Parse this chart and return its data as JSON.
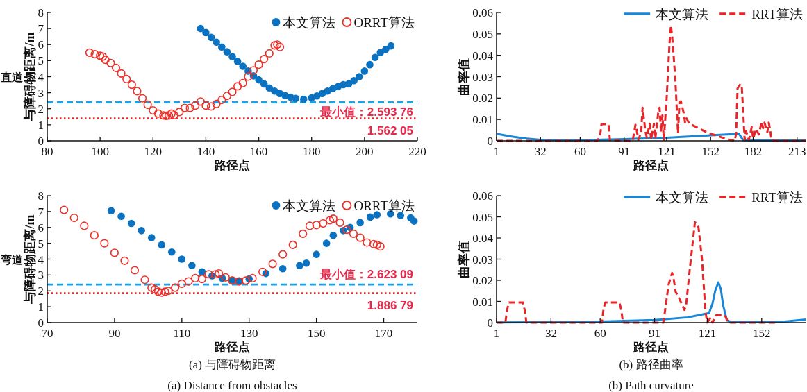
{
  "chart_data": [
    {
      "type": "scatter",
      "xlabel": "路径点",
      "ylabel": "与障碍物距离/m",
      "xlim": [
        80,
        220
      ],
      "ylim": [
        0,
        8
      ],
      "xticks": [
        80,
        100,
        120,
        140,
        160,
        180,
        200,
        220
      ],
      "yticks": [
        0,
        1,
        2,
        3,
        4,
        5,
        6,
        7,
        8
      ],
      "legend": "top right",
      "marker": "circle",
      "annotations": [
        "直道",
        "最小值：2.593 76",
        "1.562 05"
      ],
      "ref_lines": [
        {
          "axis": "y",
          "value": 2.4,
          "color": "#1ea0e6",
          "line_style": "dashed"
        },
        {
          "axis": "y",
          "value": 1.4,
          "color": "#e8262a",
          "line_style": "dotted"
        }
      ],
      "series": [
        {
          "name": "本文算法",
          "color": "#0a72c0",
          "x": [
            138,
            140,
            142,
            144,
            146,
            148,
            150,
            152,
            154,
            156,
            158,
            160,
            162,
            164,
            166,
            168,
            170,
            172,
            174,
            177,
            180,
            182,
            184,
            186,
            188,
            190,
            192,
            194,
            196,
            198,
            200,
            202,
            204,
            206,
            208,
            210
          ],
          "values": [
            7.0,
            6.75,
            6.45,
            6.15,
            5.85,
            5.55,
            5.25,
            4.95,
            4.65,
            4.35,
            4.05,
            3.8,
            3.55,
            3.3,
            3.1,
            2.95,
            2.82,
            2.72,
            2.65,
            2.59,
            2.68,
            2.8,
            2.95,
            3.1,
            3.25,
            3.38,
            3.5,
            3.55,
            3.75,
            4.0,
            4.35,
            4.75,
            5.2,
            5.5,
            5.7,
            5.92
          ]
        },
        {
          "name": "ORRT算法",
          "color": "#e8322a",
          "x": [
            96,
            98,
            100,
            101,
            102,
            104,
            106,
            108,
            110,
            112,
            114,
            116,
            118,
            120,
            122,
            124,
            125,
            126,
            127,
            128,
            130,
            132,
            134,
            136,
            138,
            140,
            142,
            144,
            146,
            148,
            150,
            152,
            154,
            156,
            158,
            160,
            162,
            164,
            166,
            167,
            168
          ],
          "values": [
            5.5,
            5.4,
            5.3,
            5.25,
            5.05,
            4.85,
            4.55,
            4.2,
            3.85,
            3.5,
            3.1,
            2.65,
            2.25,
            1.9,
            1.7,
            1.58,
            1.56,
            1.58,
            1.7,
            1.6,
            1.8,
            2.05,
            2.05,
            2.2,
            2.45,
            2.2,
            2.15,
            2.3,
            2.55,
            2.8,
            3.05,
            3.4,
            3.6,
            4.0,
            4.4,
            4.75,
            5.1,
            5.45,
            5.95,
            6.0,
            5.85
          ]
        }
      ]
    },
    {
      "type": "line",
      "xlabel": "路径点",
      "ylabel": "曲率值",
      "xlim": [
        1,
        219
      ],
      "ylim": [
        0,
        0.06
      ],
      "xticks": [
        1,
        32,
        60,
        91,
        121,
        152,
        182,
        213
      ],
      "yticks": [
        0,
        0.01,
        0.02,
        0.03,
        0.04,
        0.05,
        0.06
      ],
      "legend": "top right",
      "series": [
        {
          "name": "本文算法",
          "color": "#1a86d6",
          "line_style": "solid",
          "x": [
            1,
            10,
            20,
            32,
            50,
            70,
            91,
            121,
            150,
            172,
            175,
            180,
            219
          ],
          "values": [
            0.0033,
            0.0022,
            0.0012,
            0.0005,
            0.0002,
            0.0005,
            0.0008,
            0.0015,
            0.0025,
            0.0033,
            0.0003,
            0.0002,
            0.0002
          ]
        },
        {
          "name": "RRT算法",
          "color": "#e8262a",
          "line_style": "dashed",
          "x": [
            1,
            72,
            74,
            75,
            80,
            81,
            97,
            99,
            100,
            101,
            103,
            104,
            106,
            107,
            109,
            110,
            112,
            113,
            115,
            116,
            117,
            118,
            119,
            121,
            123,
            124,
            125,
            127,
            129,
            130,
            131,
            133,
            134,
            135,
            137,
            150,
            165,
            169,
            170,
            171,
            173,
            174,
            175,
            176,
            177,
            179,
            181,
            182,
            184,
            186,
            188,
            189,
            190,
            192,
            193,
            194,
            195,
            197,
            219
          ],
          "values": [
            0,
            0,
            0.002,
            0.0078,
            0.0078,
            0.0003,
            0,
            0.0075,
            0.0045,
            0.0005,
            0.004,
            0.0155,
            0.0045,
            0.0015,
            0.008,
            0.0005,
            0.008,
            0.001,
            0.013,
            0.0155,
            0.004,
            0.012,
            0.0005,
            0.02,
            0.0455,
            0.054,
            0.048,
            0.03,
            0.0035,
            0.018,
            0.0185,
            0.013,
            0.0085,
            0.0105,
            0.008,
            0.0038,
            0.0005,
            0,
            0.0035,
            0.0245,
            0.0265,
            0.025,
            0.0135,
            0.0005,
            0.0045,
            0.0005,
            0.0065,
            0.001,
            0.0055,
            0.003,
            0.009,
            0.006,
            0.0085,
            0.004,
            0.0085,
            0.005,
            0.0005,
            0,
            0
          ]
        }
      ]
    },
    {
      "type": "scatter",
      "xlabel": "路径点",
      "ylabel": "与障碍物距离/m",
      "xlim": [
        70,
        180
      ],
      "ylim": [
        0,
        8
      ],
      "xticks": [
        70,
        90,
        110,
        130,
        150,
        170
      ],
      "yticks": [
        0,
        1,
        2,
        3,
        4,
        5,
        6,
        7,
        8
      ],
      "legend": "top right",
      "marker": "circle",
      "annotations": [
        "弯道",
        "(a) 与障碍物距离",
        "(a) Distance from obstacles",
        "最小值：2.623 09",
        "1.886 79"
      ],
      "ref_lines": [
        {
          "axis": "y",
          "value": 2.4,
          "color": "#1ea0e6",
          "line_style": "dashed"
        },
        {
          "axis": "y",
          "value": 1.85,
          "color": "#e8262a",
          "line_style": "dotted"
        }
      ],
      "series": [
        {
          "name": "本文算法",
          "color": "#0a72c0",
          "x": [
            89,
            92,
            95,
            98,
            101,
            104,
            107,
            110,
            113,
            116,
            119,
            122,
            125,
            127,
            130,
            135,
            140,
            145,
            147,
            150,
            153,
            155,
            158,
            160,
            163,
            166,
            168,
            172,
            175,
            178,
            179
          ],
          "values": [
            7.05,
            6.7,
            6.25,
            5.8,
            5.35,
            4.9,
            4.45,
            4.0,
            3.6,
            3.2,
            2.95,
            2.8,
            2.68,
            2.62,
            2.75,
            3.1,
            3.4,
            3.6,
            3.75,
            4.3,
            5.0,
            5.5,
            5.8,
            6.0,
            6.3,
            6.65,
            6.8,
            6.85,
            6.75,
            6.6,
            6.4
          ]
        },
        {
          "name": "ORRT算法",
          "color": "#e8322a",
          "x": [
            75,
            78,
            81,
            84,
            87,
            90,
            93,
            96,
            99,
            101,
            102,
            103,
            104,
            105,
            106,
            108,
            110,
            112,
            114,
            116,
            118,
            120,
            121,
            123,
            125,
            127,
            129,
            131,
            134,
            137,
            140,
            143,
            146,
            148,
            150,
            152,
            154,
            155,
            157,
            159,
            161,
            163,
            165,
            167,
            168,
            169
          ],
          "values": [
            7.1,
            6.6,
            6.1,
            5.5,
            5.0,
            4.4,
            3.9,
            3.3,
            2.7,
            2.2,
            2.1,
            1.95,
            1.89,
            1.95,
            2.0,
            2.2,
            2.45,
            2.6,
            2.8,
            2.75,
            3.05,
            3.05,
            3.1,
            2.85,
            2.65,
            2.6,
            2.65,
            2.8,
            3.2,
            3.7,
            4.3,
            4.9,
            5.6,
            6.1,
            6.15,
            6.25,
            6.45,
            6.55,
            6.3,
            5.85,
            5.6,
            5.35,
            5.05,
            4.95,
            4.9,
            4.8
          ]
        }
      ]
    },
    {
      "type": "line",
      "xlabel": "路径点",
      "ylabel": "曲率值",
      "xlim": [
        1,
        177
      ],
      "ylim": [
        0,
        0.06
      ],
      "xticks": [
        1,
        32,
        60,
        91,
        121,
        152
      ],
      "yticks": [
        0,
        0.01,
        0.02,
        0.03,
        0.04,
        0.05,
        0.06
      ],
      "legend": "top right",
      "annotations": [
        "(b) 路径曲率",
        "(b) Path curvature"
      ],
      "series": [
        {
          "name": "本文算法",
          "color": "#1a86d6",
          "line_style": "solid",
          "x": [
            1,
            30,
            60,
            91,
            110,
            122,
            124,
            125.5,
            127.3,
            128.7,
            130.1,
            132.2,
            134.3,
            150,
            165,
            177
          ],
          "values": [
            0.0001,
            0.0002,
            0.0005,
            0.0012,
            0.0025,
            0.0045,
            0.009,
            0.015,
            0.019,
            0.016,
            0.008,
            0.001,
            0.0004,
            0.0003,
            0.0005,
            0.0015
          ]
        },
        {
          "name": "RRT算法",
          "color": "#e8262a",
          "line_style": "dashed",
          "x": [
            1,
            6,
            7,
            8,
            16,
            17,
            18,
            61,
            62,
            63,
            71,
            72,
            73,
            96,
            97,
            99,
            101,
            102,
            103,
            105,
            108,
            109,
            111,
            113,
            114,
            116,
            118,
            120,
            121,
            123,
            124,
            126,
            131,
            133,
            160
          ],
          "values": [
            0,
            0,
            0.006,
            0.0095,
            0.0095,
            0.006,
            0,
            0,
            0.007,
            0.0095,
            0.0095,
            0.006,
            0,
            0,
            0.006,
            0.018,
            0.0235,
            0.02,
            0.0145,
            0.0115,
            0.006,
            0.0085,
            0.025,
            0.04,
            0.0475,
            0.045,
            0.03,
            0.005,
            0,
            0.0025,
            0,
            0.0035,
            0.0035,
            0,
            0
          ]
        }
      ]
    }
  ]
}
